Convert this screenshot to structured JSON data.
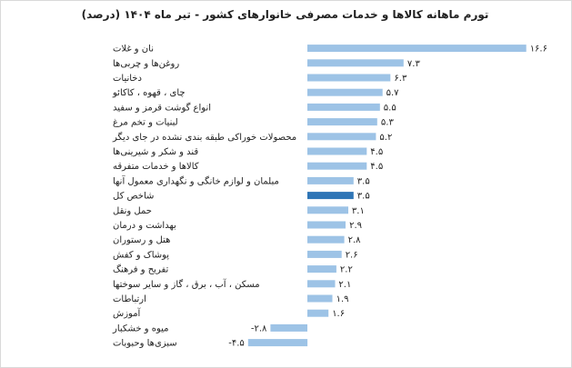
{
  "chart_data": {
    "type": "bar",
    "orientation": "horizontal",
    "title": "تورم ماهانه کالاها و خدمات مصرفی خانوارهای کشور - تیر ماه ۱۴۰۴ (درصد)",
    "categories": [
      "نان و غلات",
      "روغن‌ها و چربی‌ها",
      "دخانیات",
      "چای ، قهوه ، کاکائو",
      "انواع گوشت قرمز و سفید",
      "لبنیات و تخم مرغ",
      "محصولات خوراکی طبقه بندی نشده در جای دیگر",
      "قند و شکر و شیرینی‌ها",
      "کالاها و خدمات متفرقه",
      "مبلمان و لوازم خانگی و نگهداری معمول آنها",
      "شاخص کل",
      "حمل ونقل",
      "بهداشت و درمان",
      "هتل و رستوران",
      "پوشاک و کفش",
      "تفریح و فرهنگ",
      "مسکن ، آب ، برق ، گاز و سایر سوختها",
      "ارتباطات",
      "آموزش",
      "میوه و خشکبار",
      "سبزی‌ها وحبوبات"
    ],
    "values": [
      16.6,
      7.3,
      6.3,
      5.7,
      5.5,
      5.3,
      5.2,
      4.5,
      4.5,
      3.5,
      3.5,
      3.1,
      2.9,
      2.8,
      2.6,
      2.2,
      2.1,
      1.9,
      1.6,
      -2.8,
      -4.5
    ],
    "value_labels": [
      "۱۶.۶",
      "۷.۳",
      "۶.۳",
      "۵.۷",
      "۵.۵",
      "۵.۳",
      "۵.۲",
      "۴.۵",
      "۴.۵",
      "۳.۵",
      "۳.۵",
      "۳.۱",
      "۲.۹",
      "۲.۸",
      "۲.۶",
      "۲.۲",
      "۲.۱",
      "۱.۹",
      "۱.۶",
      "-۲.۸",
      "-۴.۵"
    ],
    "highlight_category": "شاخص کل",
    "colors": {
      "bar": "#9dc3e6",
      "highlight": "#2e75b6",
      "text": "#222222"
    },
    "grid": false,
    "legend": "none"
  }
}
